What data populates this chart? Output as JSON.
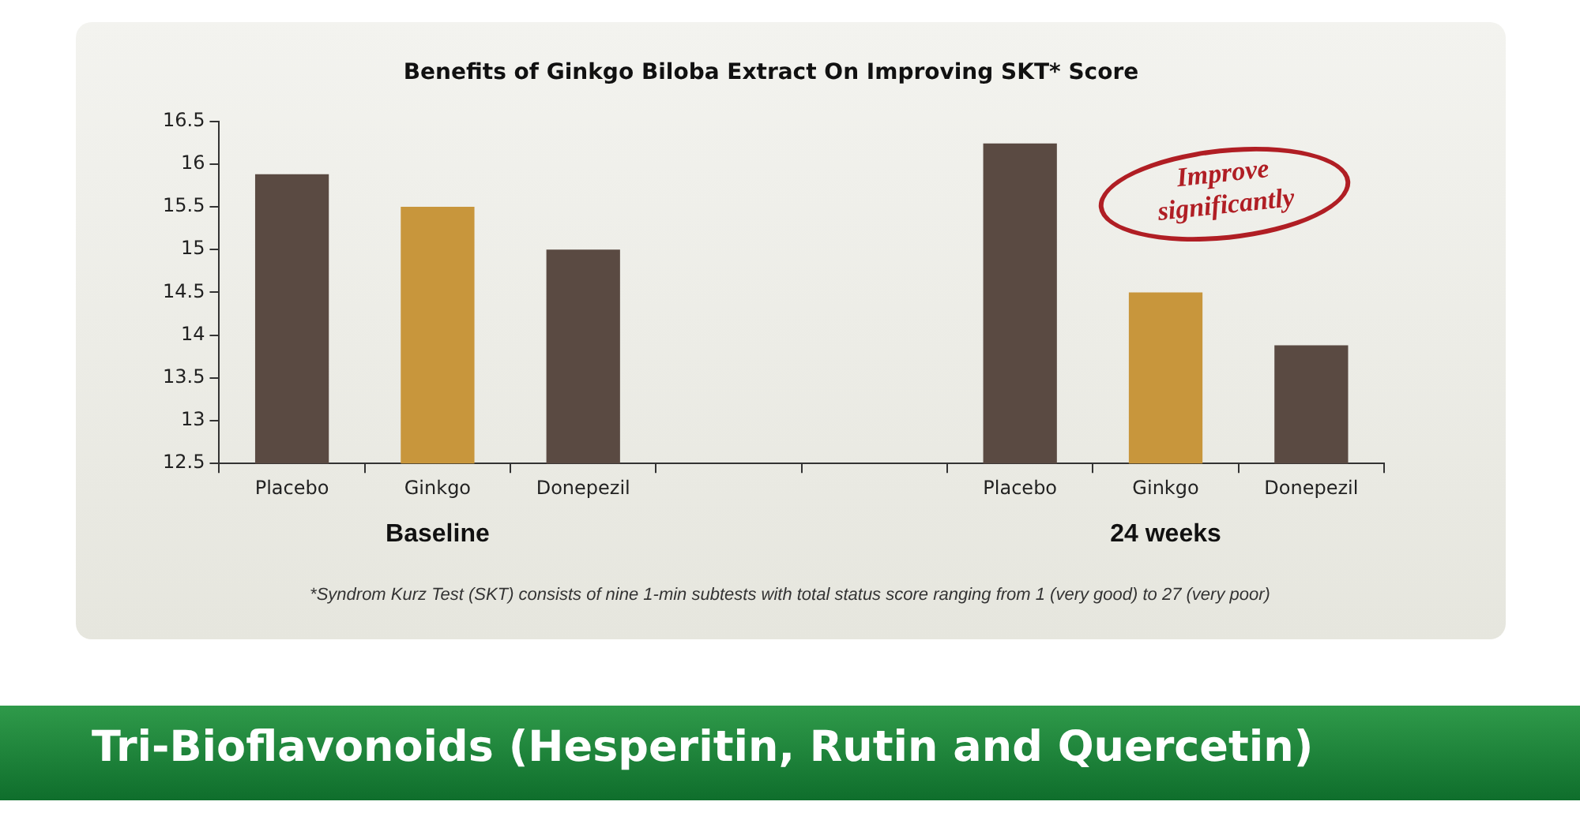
{
  "chart_data": {
    "type": "bar",
    "title": "Benefits of Ginkgo Biloba Extract On Improving SKT* Score",
    "categories": [
      "Placebo",
      "Ginkgo",
      "Donepezil",
      null,
      null,
      "Placebo",
      "Ginkgo",
      "Donepezil"
    ],
    "values": [
      15.88,
      15.5,
      15.0,
      null,
      null,
      16.24,
      14.5,
      13.88
    ],
    "colors": [
      "#5a4a42",
      "#c8963c",
      "#5a4a42",
      "#5a4a42",
      "#5a4a42",
      "#5a4a42",
      "#c8963c",
      "#5a4a42"
    ],
    "ylim": [
      12.5,
      16.5
    ],
    "yticks": [
      12.5,
      13,
      13.5,
      14,
      14.5,
      15,
      15.5,
      16,
      16.5
    ],
    "annotations": [
      "Baseline",
      "24 weeks",
      "Improve significantly",
      "*Syndrom Kurz Test (SKT) consists of nine 1-min subtests with total status score ranging from 1 (very good) to 27 (very poor)",
      "Tri-Bioflavonoids (Hesperitin, Rutin and Quercetin)"
    ]
  }
}
